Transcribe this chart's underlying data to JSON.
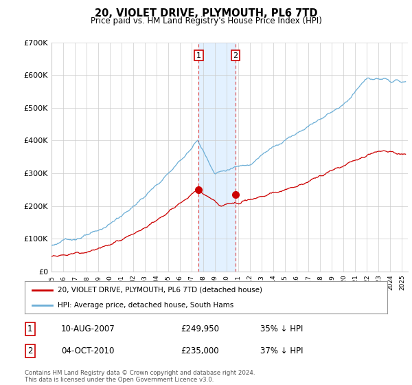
{
  "title": "20, VIOLET DRIVE, PLYMOUTH, PL6 7TD",
  "subtitle": "Price paid vs. HM Land Registry's House Price Index (HPI)",
  "legend_line1": "20, VIOLET DRIVE, PLYMOUTH, PL6 7TD (detached house)",
  "legend_line2": "HPI: Average price, detached house, South Hams",
  "transaction1_date": "10-AUG-2007",
  "transaction1_price": "£249,950",
  "transaction1_hpi": "35% ↓ HPI",
  "transaction2_date": "04-OCT-2010",
  "transaction2_price": "£235,000",
  "transaction2_hpi": "37% ↓ HPI",
  "footer": "Contains HM Land Registry data © Crown copyright and database right 2024.\nThis data is licensed under the Open Government Licence v3.0.",
  "hpi_color": "#6baed6",
  "price_color": "#cc0000",
  "shading_color": "#ddeeff",
  "vline_color": "#dd4444",
  "ylim": [
    0,
    700000
  ],
  "yticks": [
    0,
    100000,
    200000,
    300000,
    400000,
    500000,
    600000,
    700000
  ],
  "ytick_labels": [
    "£0",
    "£100K",
    "£200K",
    "£300K",
    "£400K",
    "£500K",
    "£600K",
    "£700K"
  ],
  "transaction1_year": 2007.6,
  "transaction2_year": 2010.75,
  "transaction1_value": 249950,
  "transaction2_value": 235000,
  "xmin": 1995,
  "xmax": 2025.5
}
